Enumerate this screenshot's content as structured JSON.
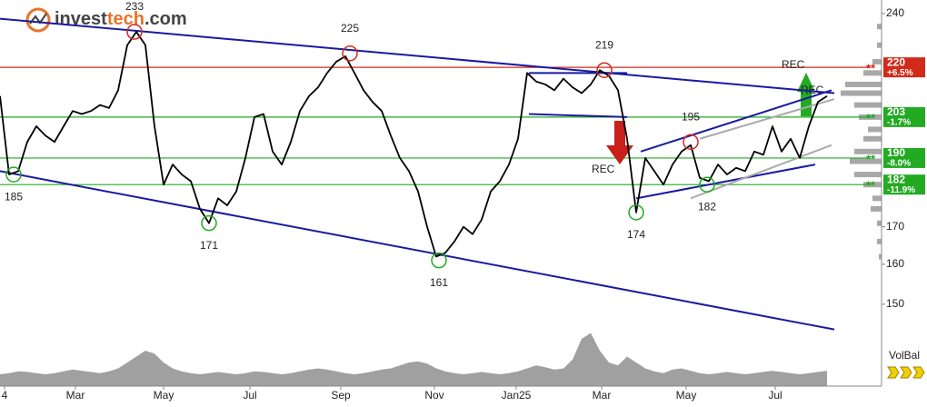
{
  "chart_data": {
    "type": "line",
    "brand": [
      "invest",
      "tech",
      ".com"
    ],
    "log_scale": true,
    "xlim": [
      0,
      97
    ],
    "ylim": [
      131.4,
      245.3
    ],
    "yticks": [
      150,
      160,
      170,
      240
    ],
    "xticks": [
      {
        "value": 0.5,
        "label": "4"
      },
      {
        "value": 8.3,
        "label": "Mar"
      },
      {
        "value": 18,
        "label": "May"
      },
      {
        "value": 27.5,
        "label": "Jul"
      },
      {
        "value": 37.5,
        "label": "Sep"
      },
      {
        "value": 47.8,
        "label": "Nov"
      },
      {
        "value": 56.8,
        "label": "Jan25"
      },
      {
        "value": 66.2,
        "label": "Mar"
      },
      {
        "value": 75.5,
        "label": "May"
      },
      {
        "value": 85.3,
        "label": "Jul"
      }
    ],
    "series": [
      {
        "color": "#000000",
        "x": [
          0,
          1,
          2,
          3,
          4,
          5,
          6,
          7,
          8,
          9,
          10,
          11,
          12,
          13,
          14,
          15,
          16,
          17,
          18,
          19,
          20,
          21,
          22,
          23,
          24,
          25,
          26,
          27,
          28,
          29,
          30,
          31,
          32,
          33,
          34,
          35,
          36,
          37,
          38,
          39,
          40,
          41,
          42,
          43,
          44,
          45,
          46,
          47,
          48,
          49,
          50,
          51,
          52,
          53,
          54,
          55,
          56,
          57,
          58,
          59,
          60,
          61,
          62,
          63,
          64,
          65,
          66,
          67,
          68,
          69,
          70,
          71,
          72,
          73,
          74,
          75,
          76,
          77,
          78,
          79,
          80,
          81,
          82,
          83,
          84,
          85,
          86,
          87,
          88,
          89,
          90,
          91
        ],
        "values": [
          210,
          185,
          186,
          195,
          200,
          197,
          195,
          200,
          205,
          204,
          205,
          207,
          206,
          212,
          228,
          233,
          228,
          200,
          182,
          188,
          185,
          183,
          175,
          171,
          178,
          176,
          180,
          190,
          203,
          204,
          192,
          188,
          195,
          205,
          210,
          213,
          218,
          222,
          224,
          218,
          212,
          208,
          205,
          197,
          190,
          186,
          180,
          170,
          162,
          163,
          166,
          170,
          168,
          172,
          180,
          183,
          188,
          196,
          218,
          215,
          214,
          212,
          216,
          213,
          211,
          214,
          219,
          217,
          212,
          196,
          174,
          190,
          186,
          182,
          188,
          192,
          194,
          184,
          183,
          188,
          185,
          187,
          186,
          192,
          191,
          200,
          192,
          196,
          190,
          200,
          208,
          210
        ]
      }
    ],
    "volume": {
      "color": "#a0a0a0",
      "lim": [
        0,
        100
      ],
      "values": [
        20,
        22,
        25,
        24,
        22,
        20,
        22,
        25,
        28,
        26,
        24,
        22,
        25,
        30,
        40,
        50,
        60,
        55,
        40,
        30,
        25,
        22,
        20,
        22,
        24,
        22,
        20,
        22,
        25,
        24,
        22,
        20,
        22,
        25,
        28,
        30,
        28,
        25,
        22,
        20,
        22,
        25,
        28,
        30,
        35,
        40,
        42,
        38,
        30,
        25,
        22,
        20,
        22,
        24,
        22,
        20,
        22,
        25,
        30,
        35,
        32,
        28,
        30,
        45,
        80,
        90,
        60,
        40,
        35,
        50,
        40,
        30,
        25,
        22,
        28,
        30,
        26,
        22,
        20,
        22,
        24,
        22,
        20,
        22,
        24,
        26,
        24,
        22,
        20,
        22,
        24,
        26
      ]
    },
    "trend_lines": [
      {
        "color": "#1a1aa0",
        "x": [
          0,
          91.8
        ],
        "values": [
          238,
          211
        ]
      },
      {
        "color": "#1a1aa0",
        "x": [
          0,
          91.8
        ],
        "values": [
          186,
          144
        ]
      },
      {
        "color": "#1a1aa0",
        "x": [
          58.2,
          69
        ],
        "values": [
          218,
          218
        ]
      },
      {
        "color": "#1a1aa0",
        "x": [
          58.2,
          69
        ],
        "values": [
          204,
          203
        ]
      },
      {
        "color": "#1a1aa0",
        "x": [
          70.5,
          91.5
        ],
        "values": [
          192,
          212
        ]
      },
      {
        "color": "#1a1aa0",
        "x": [
          70,
          89.7
        ],
        "values": [
          178,
          188
        ]
      },
      {
        "color": "#aaaaaa",
        "x": [
          76,
          91.5
        ],
        "values": [
          178,
          194
        ]
      },
      {
        "color": "#aaaaaa",
        "x": [
          77,
          91.8
        ],
        "values": [
          196,
          209
        ]
      }
    ],
    "levels": [
      {
        "value": 220,
        "change": "+6.5%",
        "color": "#d12a1a"
      },
      {
        "value": 203,
        "change": "-1.7%",
        "color": "#22aa22"
      },
      {
        "value": 190,
        "change": "-8.0%",
        "color": "#22aa22"
      },
      {
        "value": 182,
        "change": "-11.9%",
        "color": "#22aa22"
      }
    ],
    "level_marker": "**",
    "pivots": [
      {
        "x": 14.8,
        "value": 233,
        "color": "#d12a1a",
        "side": "top"
      },
      {
        "x": 38.5,
        "value": 225,
        "color": "#d12a1a",
        "side": "top"
      },
      {
        "x": 66.5,
        "value": 219,
        "color": "#d12a1a",
        "side": "top"
      },
      {
        "x": 76,
        "value": 195,
        "color": "#d12a1a",
        "side": "top"
      },
      {
        "x": 1.5,
        "value": 185,
        "color": "#22aa22",
        "side": "bottom"
      },
      {
        "x": 23,
        "value": 171,
        "color": "#22aa22",
        "side": "bottom"
      },
      {
        "x": 48.3,
        "value": 161,
        "color": "#22aa22",
        "side": "bottom"
      },
      {
        "x": 70,
        "value": 174,
        "color": "#22aa22",
        "side": "bottom"
      },
      {
        "x": 77.8,
        "value": 182,
        "color": "#22aa22",
        "side": "bottom"
      }
    ],
    "profile": {
      "color": "#a8a8a8",
      "prices": [
        235,
        228,
        222,
        218,
        214,
        211,
        207,
        203,
        199,
        196,
        192,
        189,
        185,
        182,
        178,
        175,
        171,
        166,
        162
      ],
      "values": [
        5,
        5,
        10,
        20,
        40,
        45,
        30,
        25,
        15,
        20,
        30,
        35,
        30,
        20,
        10,
        12,
        5,
        5,
        3
      ]
    },
    "signals": [
      "REC",
      "REC",
      "REC"
    ],
    "volume_label": "VolBal"
  }
}
